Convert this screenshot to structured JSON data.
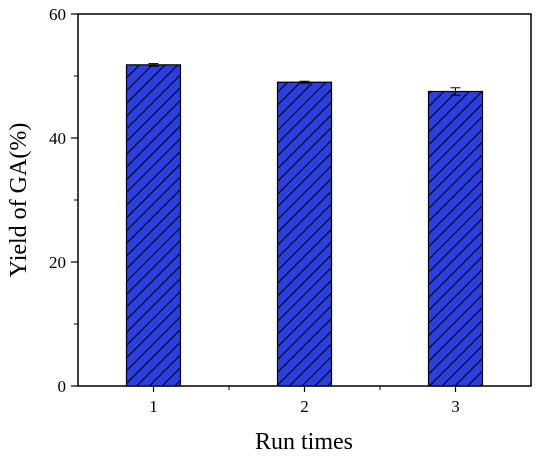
{
  "chart_data": {
    "type": "bar",
    "title": "",
    "xlabel": "Run times",
    "ylabel": "Yield of GA(%)",
    "categories": [
      "1",
      "2",
      "3"
    ],
    "values": [
      51.8,
      49.0,
      47.5
    ],
    "errors": [
      0.2,
      0.15,
      0.6
    ],
    "ylim": [
      0,
      60
    ],
    "yticks": [
      0,
      20,
      40,
      60
    ],
    "grid": false,
    "bar_color": "#2b3fe0",
    "bar_pattern": "diagonal-hatch"
  }
}
